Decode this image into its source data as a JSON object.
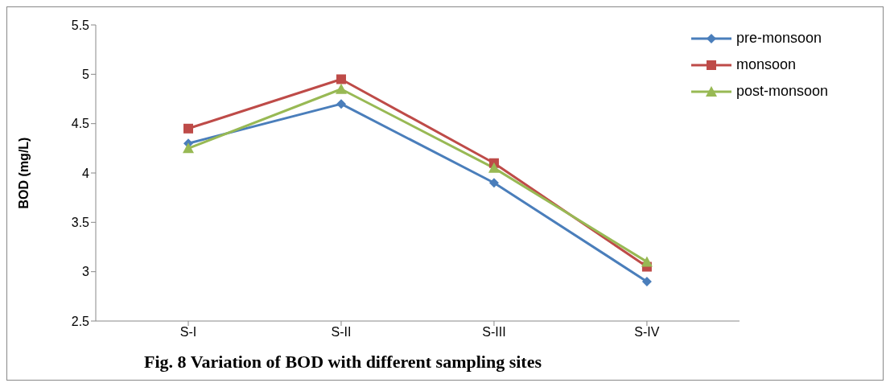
{
  "chart_data": {
    "type": "line",
    "title": "Fig. 8 Variation of BOD with different sampling sites",
    "ylabel": "BOD (mg/L)",
    "categories": [
      "S-I",
      "S-II",
      "S-III",
      "S-IV"
    ],
    "series": [
      {
        "name": "pre-monsoon",
        "color": "#4a7ebb",
        "marker": "diamond",
        "values": [
          4.3,
          4.7,
          3.9,
          2.9
        ]
      },
      {
        "name": "monsoon",
        "color": "#be4b48",
        "marker": "square",
        "values": [
          4.45,
          4.95,
          4.1,
          3.05
        ]
      },
      {
        "name": "post-monsoon",
        "color": "#98b954",
        "marker": "triangle",
        "values": [
          4.25,
          4.85,
          4.05,
          3.1
        ]
      }
    ],
    "ylim": [
      2.5,
      5.5
    ],
    "yticks": [
      2.5,
      3,
      3.5,
      4,
      4.5,
      5,
      5.5
    ],
    "legend": "top right",
    "line_style": "solid"
  }
}
